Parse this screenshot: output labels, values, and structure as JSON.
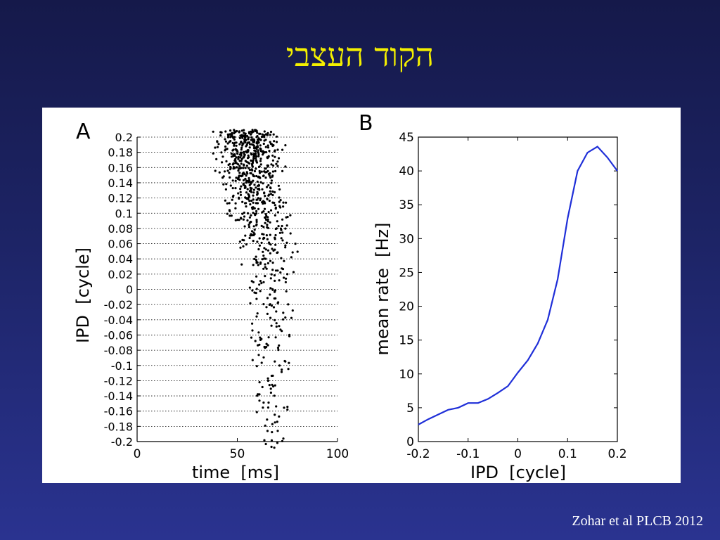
{
  "slide": {
    "title": "הקוד העצבי",
    "citation": "Zohar et al PLCB 2012"
  },
  "colors": {
    "background_top": "#15194a",
    "background_bottom": "#2a3390",
    "title": "#f4f000",
    "curve": "#1f2fd8"
  },
  "chart_data": [
    {
      "panel_label": "A",
      "type": "scatter",
      "title": "",
      "xlabel": "time  [ms]",
      "ylabel": "IPD  [cycle]",
      "xlim": [
        0,
        100
      ],
      "ylim": [
        -0.2,
        0.2
      ],
      "xticks": [
        "0",
        "50",
        "100"
      ],
      "yticks": [
        "0.2",
        "0.18",
        "0.16",
        "0.14",
        "0.12",
        "0.1",
        "0.08",
        "0.06",
        "0.04",
        "0.02",
        "0",
        "-0.02",
        "-0.04",
        "-0.06",
        "-0.08",
        "-0.1",
        "-0.12",
        "-0.14",
        "-0.16",
        "-0.18",
        "-0.2"
      ],
      "grid": "dotted horizontal lines at each IPD value",
      "series": [
        {
          "rows": [
            {
              "ipd": 0.2,
              "n": 140,
              "t_min": 37,
              "t_max": 74,
              "t_center": 55
            },
            {
              "ipd": 0.18,
              "n": 120,
              "t_min": 38,
              "t_max": 74,
              "t_center": 56
            },
            {
              "ipd": 0.16,
              "n": 100,
              "t_min": 39,
              "t_max": 74,
              "t_center": 56
            },
            {
              "ipd": 0.14,
              "n": 85,
              "t_min": 40,
              "t_max": 74,
              "t_center": 57
            },
            {
              "ipd": 0.12,
              "n": 70,
              "t_min": 44,
              "t_max": 82,
              "t_center": 59
            },
            {
              "ipd": 0.1,
              "n": 55,
              "t_min": 45,
              "t_max": 83,
              "t_center": 60
            },
            {
              "ipd": 0.08,
              "n": 45,
              "t_min": 46,
              "t_max": 82,
              "t_center": 61
            },
            {
              "ipd": 0.06,
              "n": 35,
              "t_min": 43,
              "t_max": 80,
              "t_center": 62
            },
            {
              "ipd": 0.04,
              "n": 28,
              "t_min": 50,
              "t_max": 82,
              "t_center": 64
            },
            {
              "ipd": 0.02,
              "n": 22,
              "t_min": 52,
              "t_max": 83,
              "t_center": 65
            },
            {
              "ipd": 0,
              "n": 18,
              "t_min": 52,
              "t_max": 83,
              "t_center": 66
            },
            {
              "ipd": -0.02,
              "n": 16,
              "t_min": 50,
              "t_max": 78,
              "t_center": 66
            },
            {
              "ipd": -0.04,
              "n": 14,
              "t_min": 45,
              "t_max": 77,
              "t_center": 66
            },
            {
              "ipd": -0.06,
              "n": 13,
              "t_min": 46,
              "t_max": 76,
              "t_center": 67
            },
            {
              "ipd": -0.08,
              "n": 12,
              "t_min": 50,
              "t_max": 76,
              "t_center": 67
            },
            {
              "ipd": -0.1,
              "n": 11,
              "t_min": 52,
              "t_max": 76,
              "t_center": 67
            },
            {
              "ipd": -0.12,
              "n": 10,
              "t_min": 55,
              "t_max": 76,
              "t_center": 68
            },
            {
              "ipd": -0.14,
              "n": 9,
              "t_min": 55,
              "t_max": 74,
              "t_center": 66
            },
            {
              "ipd": -0.16,
              "n": 9,
              "t_min": 55,
              "t_max": 75,
              "t_center": 67
            },
            {
              "ipd": -0.18,
              "n": 8,
              "t_min": 58,
              "t_max": 74,
              "t_center": 67
            },
            {
              "ipd": -0.2,
              "n": 8,
              "t_min": 60,
              "t_max": 76,
              "t_center": 68
            }
          ]
        }
      ]
    },
    {
      "panel_label": "B",
      "type": "line",
      "title": "",
      "xlabel": "IPD  [cycle]",
      "ylabel": "mean rate  [Hz]",
      "xlim": [
        -0.2,
        0.2
      ],
      "ylim": [
        0,
        45
      ],
      "xticks": [
        "-0.2",
        "-0.1",
        "0",
        "0.1",
        "0.2"
      ],
      "yticks": [
        "0",
        "5",
        "10",
        "15",
        "20",
        "25",
        "30",
        "35",
        "40",
        "45"
      ],
      "grid": "off",
      "series": [
        {
          "x": [
            -0.2,
            -0.18,
            -0.16,
            -0.14,
            -0.12,
            -0.1,
            -0.08,
            -0.06,
            -0.04,
            -0.02,
            0,
            0.02,
            0.04,
            0.06,
            0.08,
            0.1,
            0.12,
            0.14,
            0.16,
            0.18,
            0.2
          ],
          "y": [
            2.5,
            3.3,
            4.0,
            4.7,
            5.0,
            5.7,
            5.7,
            6.3,
            7.2,
            8.2,
            10.2,
            12.0,
            14.5,
            18.0,
            24.0,
            33.0,
            40.0,
            42.7,
            43.6,
            42.0,
            40.0
          ]
        }
      ]
    }
  ]
}
